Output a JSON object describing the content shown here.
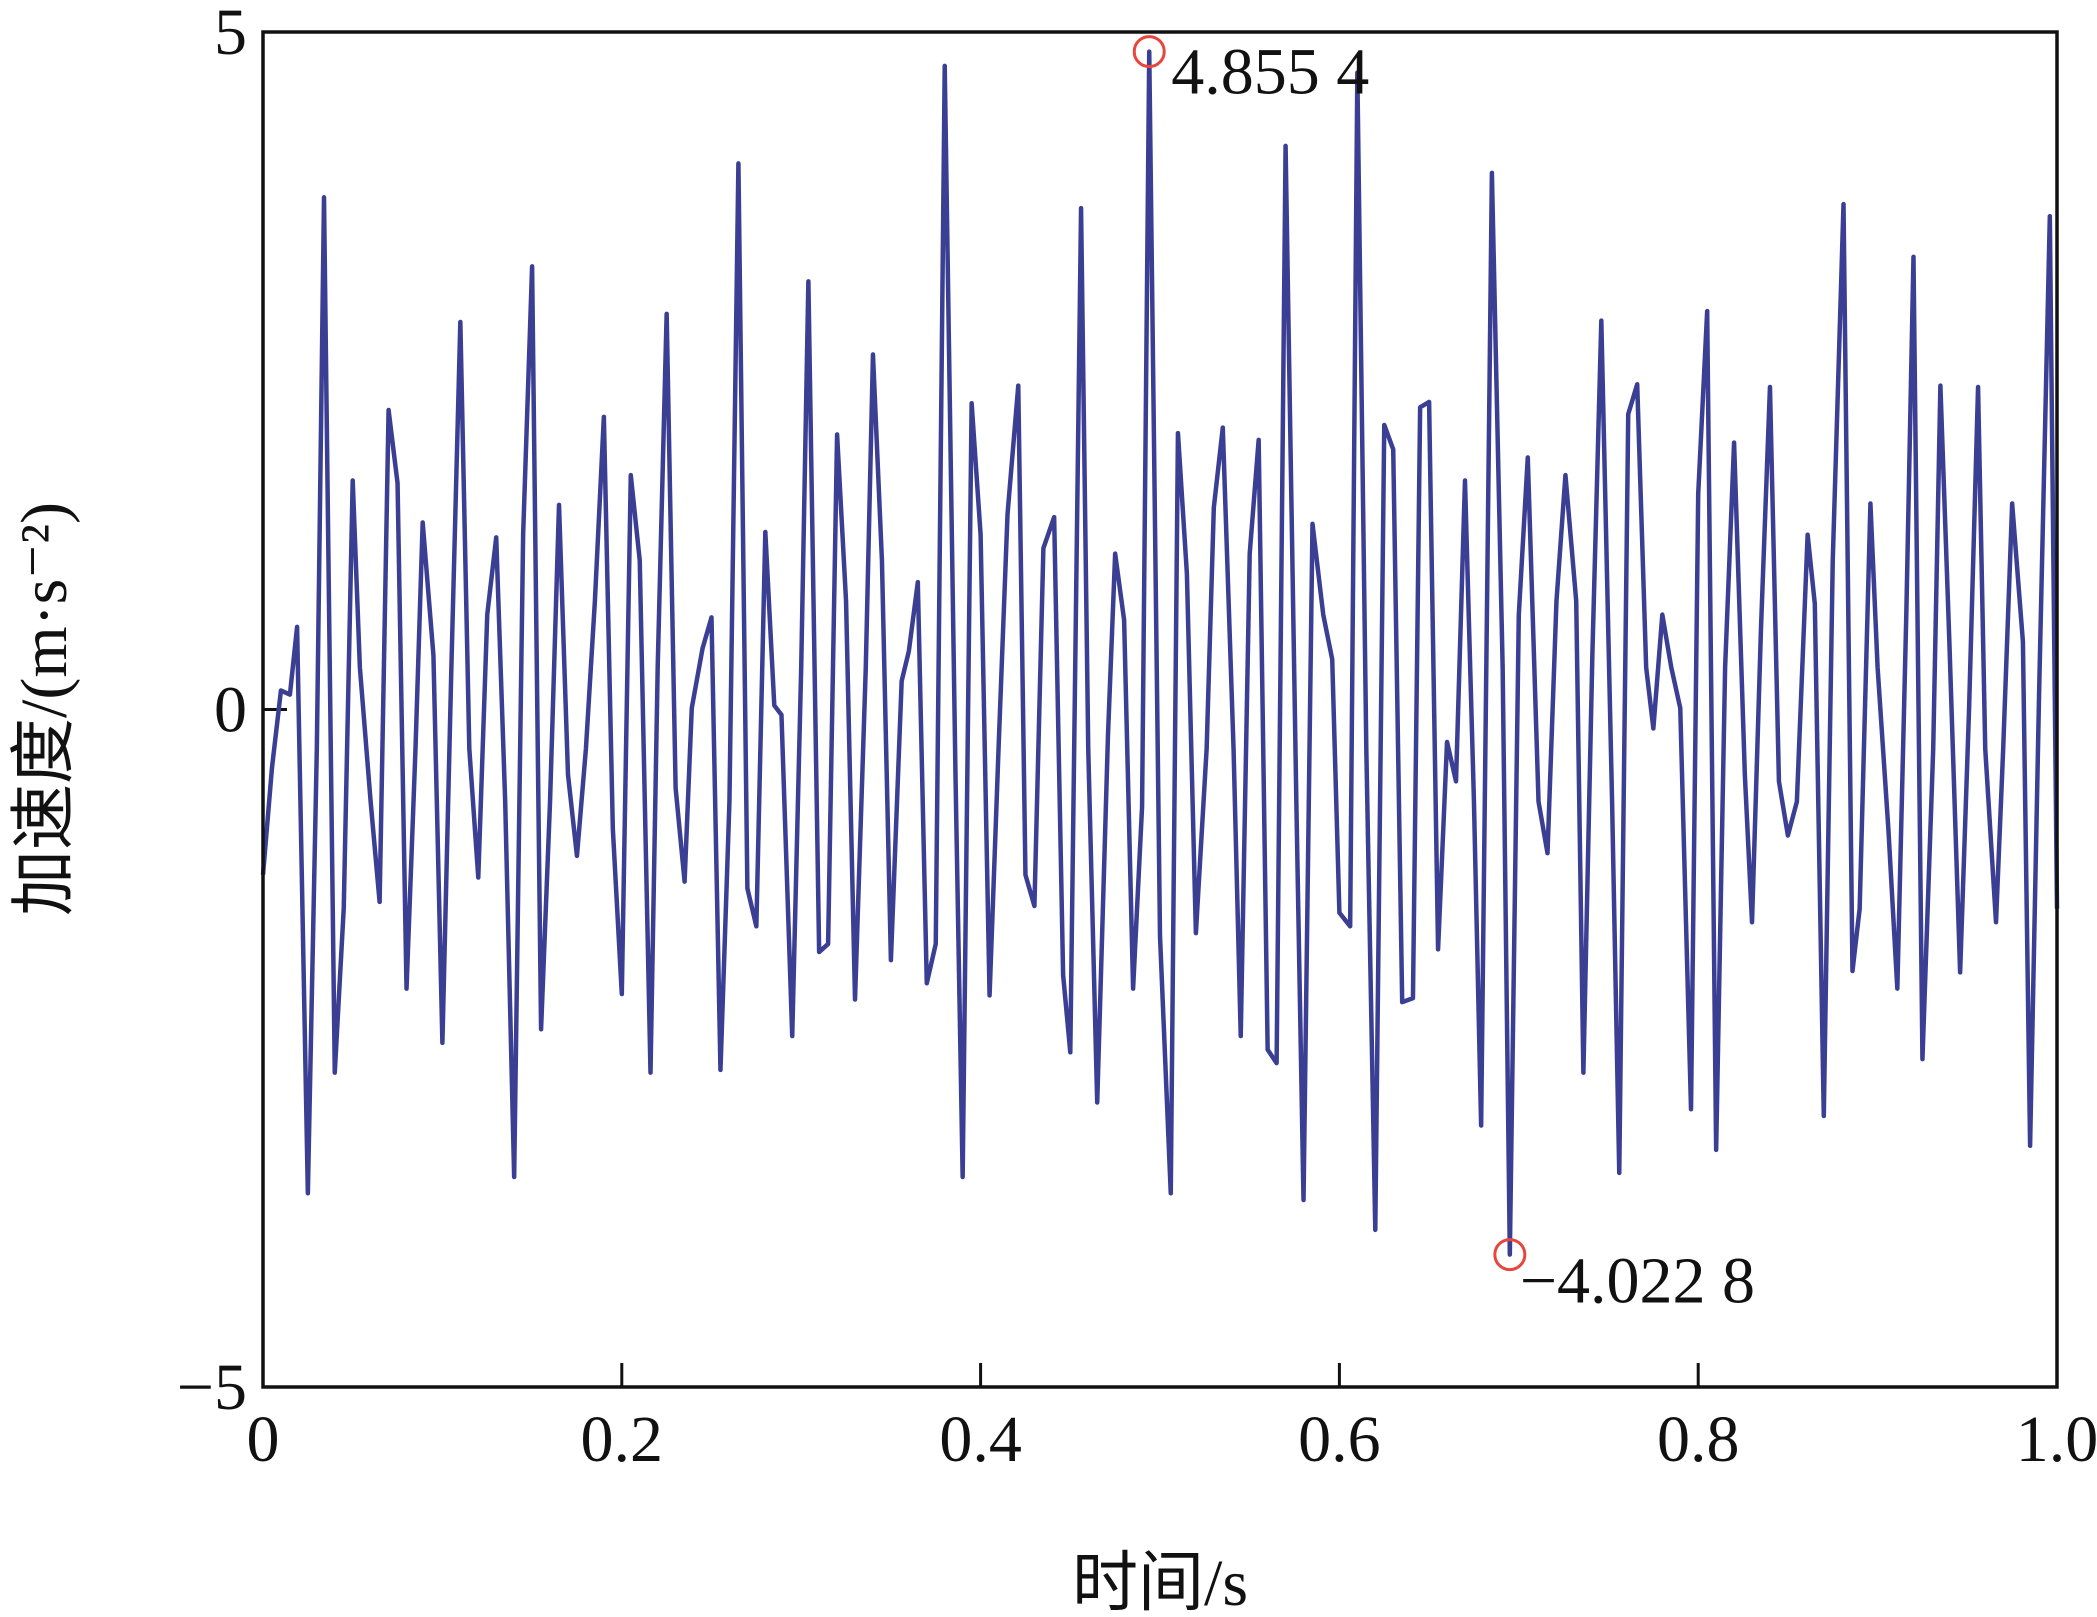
{
  "chart_data": {
    "type": "line",
    "xlabel": "时间/s",
    "ylabel": "加速度/(m·s⁻²)",
    "xlim": [
      0,
      1
    ],
    "ylim": [
      -5,
      5
    ],
    "xticks": [
      0,
      0.2,
      0.4,
      0.6,
      0.8,
      {
        "value": 1,
        "label": "1.0"
      }
    ],
    "yticks": [
      {
        "value": -5,
        "label": "−5"
      },
      0,
      5
    ],
    "grid": false,
    "series": [
      {
        "color": "#3b3f94",
        "x": [
          0,
          0.005,
          0.01,
          0.015,
          0.019,
          0.025,
          0.03,
          0.034,
          0.04,
          0.045,
          0.05,
          0.054,
          0.06,
          0.065,
          0.07,
          0.075,
          0.08,
          0.085,
          0.089,
          0.095,
          0.1,
          0.105,
          0.11,
          0.115,
          0.12,
          0.125,
          0.13,
          0.135,
          0.14,
          0.145,
          0.15,
          0.155,
          0.16,
          0.165,
          0.17,
          0.175,
          0.18,
          0.185,
          0.19,
          0.195,
          0.2,
          0.205,
          0.21,
          0.216,
          0.22,
          0.225,
          0.23,
          0.235,
          0.239,
          0.245,
          0.25,
          0.255,
          0.26,
          0.265,
          0.27,
          0.275,
          0.28,
          0.285,
          0.289,
          0.295,
          0.3,
          0.304,
          0.31,
          0.315,
          0.32,
          0.325,
          0.33,
          0.336,
          0.34,
          0.345,
          0.35,
          0.356,
          0.36,
          0.365,
          0.37,
          0.375,
          0.38,
          0.386,
          0.39,
          0.395,
          0.4,
          0.405,
          0.41,
          0.415,
          0.421,
          0.425,
          0.43,
          0.435,
          0.441,
          0.446,
          0.45,
          0.456,
          0.46,
          0.465,
          0.471,
          0.475,
          0.48,
          0.485,
          0.49,
          0.494,
          0.5,
          0.506,
          0.51,
          0.515,
          0.52,
          0.526,
          0.53,
          0.535,
          0.541,
          0.545,
          0.55,
          0.555,
          0.56,
          0.565,
          0.57,
          0.576,
          0.58,
          0.585,
          0.591,
          0.596,
          0.6,
          0.606,
          0.61,
          0.615,
          0.62,
          0.625,
          0.63,
          0.635,
          0.641,
          0.645,
          0.65,
          0.655,
          0.66,
          0.665,
          0.67,
          0.675,
          0.679,
          0.685,
          0.691,
          0.695,
          0.7,
          0.705,
          0.711,
          0.716,
          0.721,
          0.726,
          0.732,
          0.736,
          0.741,
          0.746,
          0.752,
          0.756,
          0.761,
          0.766,
          0.771,
          0.775,
          0.78,
          0.785,
          0.79,
          0.796,
          0.8,
          0.805,
          0.81,
          0.815,
          0.82,
          0.826,
          0.83,
          0.835,
          0.84,
          0.845,
          0.85,
          0.855,
          0.861,
          0.865,
          0.87,
          0.875,
          0.881,
          0.886,
          0.89,
          0.896,
          0.9,
          0.906,
          0.911,
          0.916,
          0.92,
          0.925,
          0.931,
          0.935,
          0.94,
          0.946,
          0.951,
          0.956,
          0.96,
          0.966,
          0.97,
          0.975,
          0.981,
          0.985,
          0.99,
          0.996,
          1.0
        ],
        "values": [
          -1.22,
          -0.43,
          0.14,
          0.11,
          0.61,
          -3.57,
          -0.29,
          3.78,
          -2.68,
          -1.47,
          1.69,
          0.31,
          -0.68,
          -1.42,
          2.21,
          1.67,
          -2.06,
          -0.29,
          1.38,
          0.4,
          -2.46,
          0.31,
          2.86,
          -0.29,
          -1.24,
          0.7,
          1.27,
          -0.68,
          -3.45,
          1.29,
          3.27,
          -2.36,
          -0.68,
          1.51,
          -0.48,
          -1.08,
          -0.29,
          0.8,
          2.16,
          -0.88,
          -2.1,
          1.73,
          1.1,
          -2.68,
          0.31,
          2.92,
          -0.58,
          -1.27,
          0.01,
          0.45,
          0.68,
          -2.66,
          -0.68,
          4.03,
          -1.32,
          -1.6,
          1.31,
          0.03,
          -0.04,
          -2.41,
          0.31,
          3.16,
          -1.79,
          -1.73,
          2.03,
          0.8,
          -2.14,
          0.31,
          2.62,
          1.1,
          -1.85,
          0.21,
          0.43,
          0.94,
          -2.02,
          -1.73,
          4.75,
          -0.48,
          -3.45,
          2.26,
          1.29,
          -2.11,
          -0.29,
          1.44,
          2.39,
          -1.22,
          -1.45,
          1.19,
          1.42,
          -1.96,
          -2.53,
          3.7,
          -0.29,
          -2.9,
          -0.19,
          1.15,
          0.66,
          -2.06,
          -0.72,
          4.8554,
          -1.67,
          -3.57,
          2.04,
          1.0,
          -1.65,
          -0.29,
          1.49,
          2.08,
          -0.29,
          -2.41,
          1.15,
          1.99,
          -2.51,
          -2.61,
          4.16,
          -0.68,
          -3.62,
          1.37,
          0.7,
          0.37,
          -1.5,
          -1.6,
          4.7,
          -0.29,
          -3.84,
          2.1,
          1.92,
          -2.16,
          -2.13,
          2.23,
          2.27,
          -1.77,
          -0.24,
          -0.53,
          1.69,
          -0.68,
          -3.07,
          3.96,
          0.31,
          -4.0228,
          0.7,
          1.86,
          -0.68,
          -1.06,
          0.8,
          1.73,
          0.8,
          -2.68,
          0.4,
          2.87,
          -0.68,
          -3.42,
          2.18,
          2.4,
          0.31,
          -0.14,
          0.7,
          0.31,
          0.01,
          -2.95,
          1.59,
          2.94,
          -3.25,
          0.31,
          1.97,
          -0.48,
          -1.57,
          0.6,
          2.38,
          -0.53,
          -0.93,
          -0.68,
          1.29,
          0.78,
          -3.0,
          1.1,
          3.73,
          -1.93,
          -1.47,
          1.52,
          0.31,
          -0.88,
          -2.06,
          0.7,
          3.34,
          -2.58,
          -0.29,
          2.39,
          0.5,
          -1.94,
          0.01,
          2.38,
          -0.29,
          -1.57,
          -0.29,
          1.52,
          0.5,
          -3.22,
          0.11,
          3.64,
          -1.47
        ]
      }
    ],
    "annotations": [
      {
        "x": 0.494,
        "y": 4.8554,
        "text": "4.855 4",
        "color": "#e8453c"
      },
      {
        "x": 0.695,
        "y": -4.0228,
        "text": "−4.022 8",
        "color": "#e8453c"
      }
    ]
  }
}
